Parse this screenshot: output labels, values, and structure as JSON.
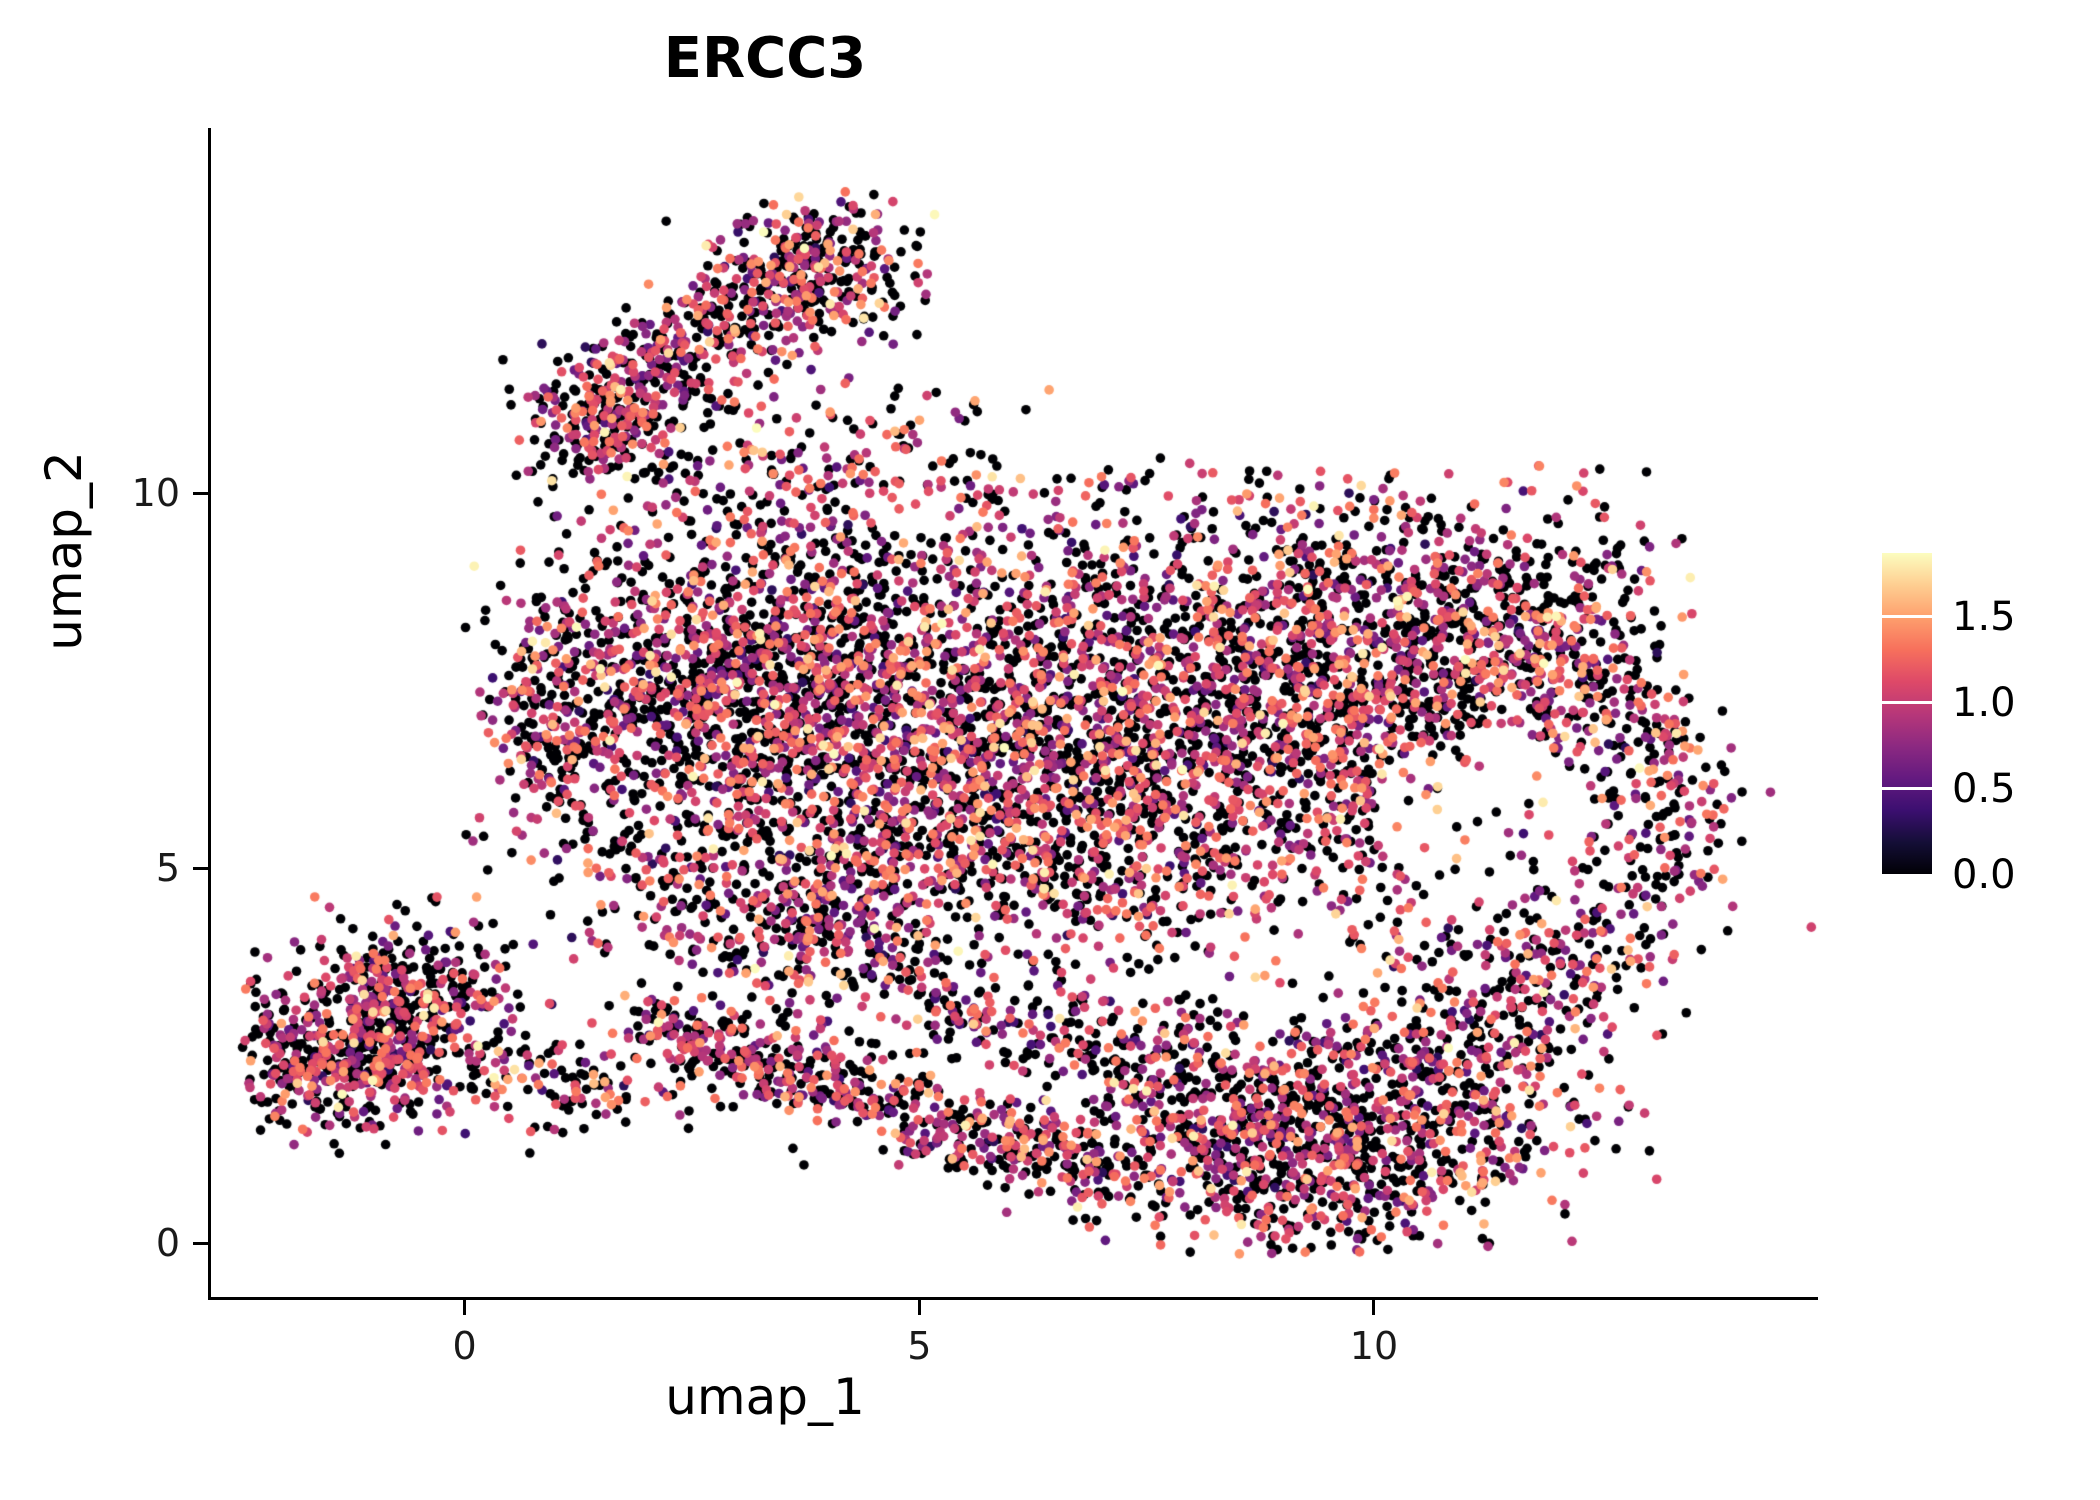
{
  "chart_data": {
    "type": "scatter",
    "title": "ERCC3",
    "xlabel": "umap_1",
    "ylabel": "umap_2",
    "xlim": [
      -2.8,
      14.85
    ],
    "ylim": [
      -0.73,
      14.84
    ],
    "x_ticks": [
      0,
      5,
      10
    ],
    "y_ticks": [
      0,
      5,
      10
    ],
    "grid": false,
    "background": "#ffffff",
    "axis_color": "#000000",
    "tick_label_color": "#1a1a1a",
    "point_radius_px": 4.8,
    "n_points_approx": 11000,
    "colorbar": {
      "position": "right",
      "domain": [
        0,
        1.87
      ],
      "ticks": [
        0,
        0.5,
        1.0,
        1.5
      ],
      "tick_labels": [
        "0.0",
        "0.5",
        "1.0",
        "1.5"
      ],
      "colormap": "magma",
      "stops": [
        "#000004",
        "#140e36",
        "#3b0f70",
        "#641a80",
        "#8c2981",
        "#b73779",
        "#de4968",
        "#f7705c",
        "#fe9f6d",
        "#fece91",
        "#fcfdbf"
      ]
    },
    "seed": 1337,
    "expression_mix": {
      "p_zero": 0.46,
      "p_mid": 0.37,
      "mid_mean": 0.88,
      "mid_sd": 0.27,
      "mid_clamp": [
        0.3,
        1.35
      ],
      "p_high": 0.14,
      "high_range": [
        1.05,
        1.55
      ],
      "p_top": 0.03,
      "top_range": [
        1.55,
        1.87
      ]
    },
    "clusters": [
      {
        "name": "bottom-left-core-a",
        "type": "gauss",
        "cx": -1.45,
        "cy": 2.5,
        "sx": 0.58,
        "sy": 0.52,
        "n": 430,
        "clip": [
          -2.45,
          0.8,
          1.1,
          4.4
        ]
      },
      {
        "name": "bottom-left-core-b",
        "type": "gauss",
        "cx": -0.6,
        "cy": 3.1,
        "sx": 0.65,
        "sy": 0.62,
        "n": 420,
        "clip": [
          -2.45,
          1.2,
          1.2,
          4.7
        ]
      },
      {
        "name": "bottom-left-tail",
        "type": "arm",
        "x1": 0.1,
        "y1": 2.3,
        "x2": 2.1,
        "y2": 1.95,
        "jitter": 0.3,
        "n": 110
      },
      {
        "name": "left-connector",
        "type": "gauss",
        "cx": 2.5,
        "cy": 4.8,
        "sx": 0.8,
        "sy": 0.75,
        "n": 150
      },
      {
        "name": "top-arm",
        "type": "arm",
        "x1": 1.15,
        "y1": 10.85,
        "x2": 4.25,
        "y2": 13.35,
        "jitter": 0.4,
        "n": 560
      },
      {
        "name": "top-arm-head",
        "type": "gauss",
        "cx": 3.95,
        "cy": 13.0,
        "sx": 0.55,
        "sy": 0.42,
        "n": 170,
        "clip": [
          2.6,
          5.2,
          11.9,
          14.1
        ]
      },
      {
        "name": "top-arm-base",
        "type": "gauss",
        "cx": 1.6,
        "cy": 10.9,
        "sx": 0.45,
        "sy": 0.5,
        "n": 150
      },
      {
        "name": "top-scatter",
        "type": "gauss",
        "cx": 4.2,
        "cy": 10.5,
        "sx": 1.15,
        "sy": 0.6,
        "n": 150
      },
      {
        "name": "main-left-lobe",
        "type": "gauss",
        "cx": 3.3,
        "cy": 7.6,
        "sx": 1.35,
        "sy": 1.2,
        "n": 1700,
        "clip": [
          0.45,
          7.5,
          4.0,
          10.4
        ]
      },
      {
        "name": "left-edge",
        "type": "gauss",
        "cx": 1.0,
        "cy": 6.9,
        "sx": 0.55,
        "sy": 0.9,
        "n": 240,
        "clip": [
          0.0,
          2.5,
          4.8,
          9.2
        ]
      },
      {
        "name": "main-right",
        "type": "gauss",
        "cx": 8.3,
        "cy": 7.2,
        "sx": 2.3,
        "sy": 1.5,
        "n": 2750,
        "clip": [
          3.8,
          13.0,
          3.2,
          10.4
        ]
      },
      {
        "name": "main-mid-low",
        "type": "gauss",
        "cx": 5.4,
        "cy": 5.3,
        "sx": 1.6,
        "sy": 1.0,
        "n": 850,
        "clip": [
          1.8,
          10.0,
          3.0,
          8.0
        ]
      },
      {
        "name": "right-upper",
        "type": "gauss",
        "cx": 11.3,
        "cy": 8.3,
        "sx": 1.2,
        "sy": 0.8,
        "n": 430,
        "clip": [
          8.8,
          13.5,
          6.2,
          10.2
        ]
      },
      {
        "name": "right-rim",
        "type": "arc",
        "cx": 11.15,
        "cy": 5.7,
        "r": 2.25,
        "a1": -80,
        "a2": 80,
        "jitter": 0.33,
        "n": 330
      },
      {
        "name": "right-sparse",
        "type": "gauss",
        "cx": 11.1,
        "cy": 5.3,
        "sx": 1.2,
        "sy": 1.2,
        "n": 150
      },
      {
        "name": "bottom-chain-a",
        "type": "arm",
        "x1": 1.9,
        "y1": 3.0,
        "x2": 4.3,
        "y2": 1.95,
        "jitter": 0.27,
        "n": 290
      },
      {
        "name": "bottom-chain-b",
        "type": "arm",
        "x1": 4.3,
        "y1": 1.95,
        "x2": 7.2,
        "y2": 0.9,
        "jitter": 0.3,
        "n": 320
      },
      {
        "name": "bottom-band-sparse",
        "type": "arm",
        "x1": 4.6,
        "y1": 3.35,
        "x2": 7.9,
        "y2": 2.4,
        "jitter": 0.35,
        "n": 220
      },
      {
        "name": "bottom-right-dense",
        "type": "gauss",
        "cx": 9.2,
        "cy": 1.5,
        "sx": 1.3,
        "sy": 0.85,
        "n": 1150,
        "clip": [
          6.2,
          12.4,
          -0.15,
          3.6
        ]
      },
      {
        "name": "bottom-right-ext",
        "type": "gauss",
        "cx": 11.3,
        "cy": 2.5,
        "sx": 0.85,
        "sy": 0.85,
        "n": 280,
        "clip": [
          9.5,
          13.2,
          0.3,
          4.4
        ]
      },
      {
        "name": "lower-left-patch",
        "type": "gauss",
        "cx": 3.9,
        "cy": 4.0,
        "sx": 0.75,
        "sy": 0.55,
        "n": 200
      }
    ],
    "holes": [
      {
        "cx": 11.15,
        "cy": 5.7,
        "r": 1.15,
        "p": 0.85
      },
      {
        "cx": 9.1,
        "cy": 3.7,
        "r": 0.85,
        "p": 0.55
      },
      {
        "cx": 5.8,
        "cy": 4.05,
        "r": 0.75,
        "p": 0.5
      }
    ]
  }
}
